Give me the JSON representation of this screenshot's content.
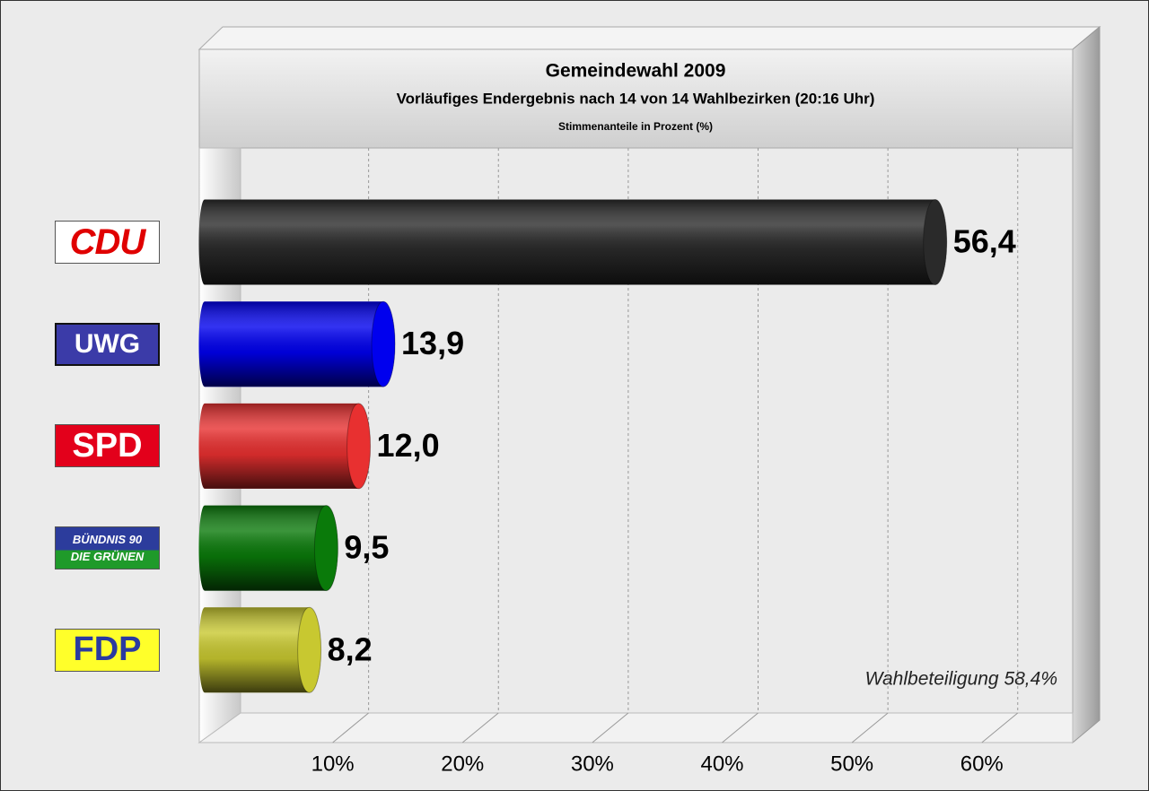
{
  "chart_data": {
    "type": "bar",
    "orientation": "horizontal",
    "title": "Gemeindewahl 2009",
    "subtitle": "Vorläufiges Endergebnis nach 14 von 14 Wahlbezirken (20:16 Uhr)",
    "note": "Stimmenanteile in Prozent (%)",
    "annotation": "Wahlbeteiligung 58,4%",
    "categories": [
      "CDU",
      "UWG",
      "SPD",
      "BÜNDNIS 90\nDIE GRÜNEN",
      "FDP"
    ],
    "values": [
      56.4,
      13.9,
      12.0,
      9.5,
      8.2
    ],
    "value_labels": [
      "56,4",
      "13,9",
      "12,0",
      "9,5",
      "8,2"
    ],
    "colors": [
      "#2a2a2a",
      "#0000ee",
      "#e83030",
      "#0a7a0a",
      "#c8c830"
    ],
    "xlim": [
      0,
      67
    ],
    "xticks": [
      {
        "value": 10,
        "label": "10%"
      },
      {
        "value": 20,
        "label": "20%"
      },
      {
        "value": 30,
        "label": "30%"
      },
      {
        "value": 40,
        "label": "40%"
      },
      {
        "value": 50,
        "label": "50%"
      },
      {
        "value": 60,
        "label": "60%"
      }
    ],
    "grid": true
  }
}
